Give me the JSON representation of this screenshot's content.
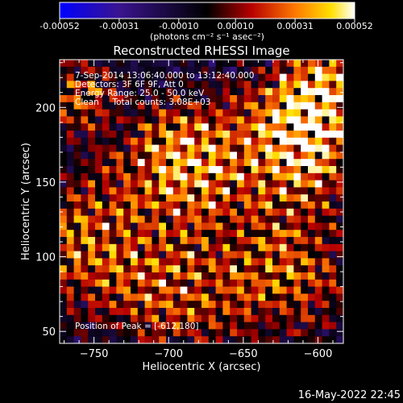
{
  "chart_data": {
    "type": "heatmap",
    "title": "Reconstructed RHESSI Image",
    "xlabel": "Heliocentric X (arcsec)",
    "ylabel": "Heliocentric Y (arcsec)",
    "xlim": [
      -773,
      -583
    ],
    "ylim": [
      42,
      232
    ],
    "x_ticks": [
      -750,
      -700,
      -650,
      -600
    ],
    "y_ticks": [
      50,
      100,
      150,
      200
    ],
    "colorbar": {
      "ticks": [
        "-0.00052",
        "-0.00031",
        "-0.00010",
        "0.00010",
        "0.00031",
        "0.00052"
      ],
      "tick_values": [
        -0.00052,
        -0.00031,
        -0.0001,
        0.0001,
        0.00031,
        0.00052
      ],
      "range": [
        -0.00052,
        0.00052
      ],
      "unit_label": "(photons cm⁻² s⁻¹ asec⁻²)",
      "colors": [
        "#0000ff",
        "#3a1490",
        "#000000",
        "#b80000",
        "#ff7a00",
        "#ffe000",
        "#ffffff"
      ]
    },
    "annotations": [
      "7-Sep-2014 13:06:40.000 to 13:12:40.000",
      "Detectors: 3F 6F 9F, Att 0",
      "Energy Range: 25.0 - 50.0 keV",
      "Clean     Total counts: 3.08E+03"
    ],
    "peak_label": "Position of Peak = [-612,180]",
    "peak": [
      -612,
      180
    ],
    "grid": false
  },
  "timestamp": "16-May-2022 22:45"
}
